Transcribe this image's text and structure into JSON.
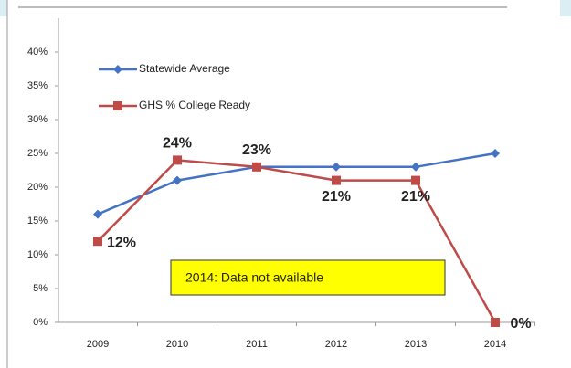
{
  "chart_data": {
    "type": "line",
    "categories": [
      "2009",
      "2010",
      "2011",
      "2012",
      "2013",
      "2014"
    ],
    "series": [
      {
        "name": "Statewide Average",
        "color": "#4472c4",
        "marker": "diamond",
        "values": [
          16,
          21,
          23,
          23,
          23,
          25
        ]
      },
      {
        "name": "GHS % College Ready",
        "color": "#be4b48",
        "marker": "square",
        "values": [
          12,
          24,
          23,
          21,
          21,
          0
        ],
        "value_labels": [
          "12%",
          "24%",
          "23%",
          "21%",
          "21%",
          "0%"
        ]
      }
    ],
    "ylim": [
      0,
      45
    ],
    "yticks": [
      {
        "value": 0,
        "label": "0%"
      },
      {
        "value": 5,
        "label": "5%"
      },
      {
        "value": 10,
        "label": "10%"
      },
      {
        "value": 15,
        "label": "15%"
      },
      {
        "value": 20,
        "label": "20%"
      },
      {
        "value": 25,
        "label": "25%"
      },
      {
        "value": 30,
        "label": "30%"
      },
      {
        "value": 35,
        "label": "35%"
      },
      {
        "value": 40,
        "label": "40%"
      }
    ],
    "annotation": "2014: Data not available",
    "grid": false
  }
}
